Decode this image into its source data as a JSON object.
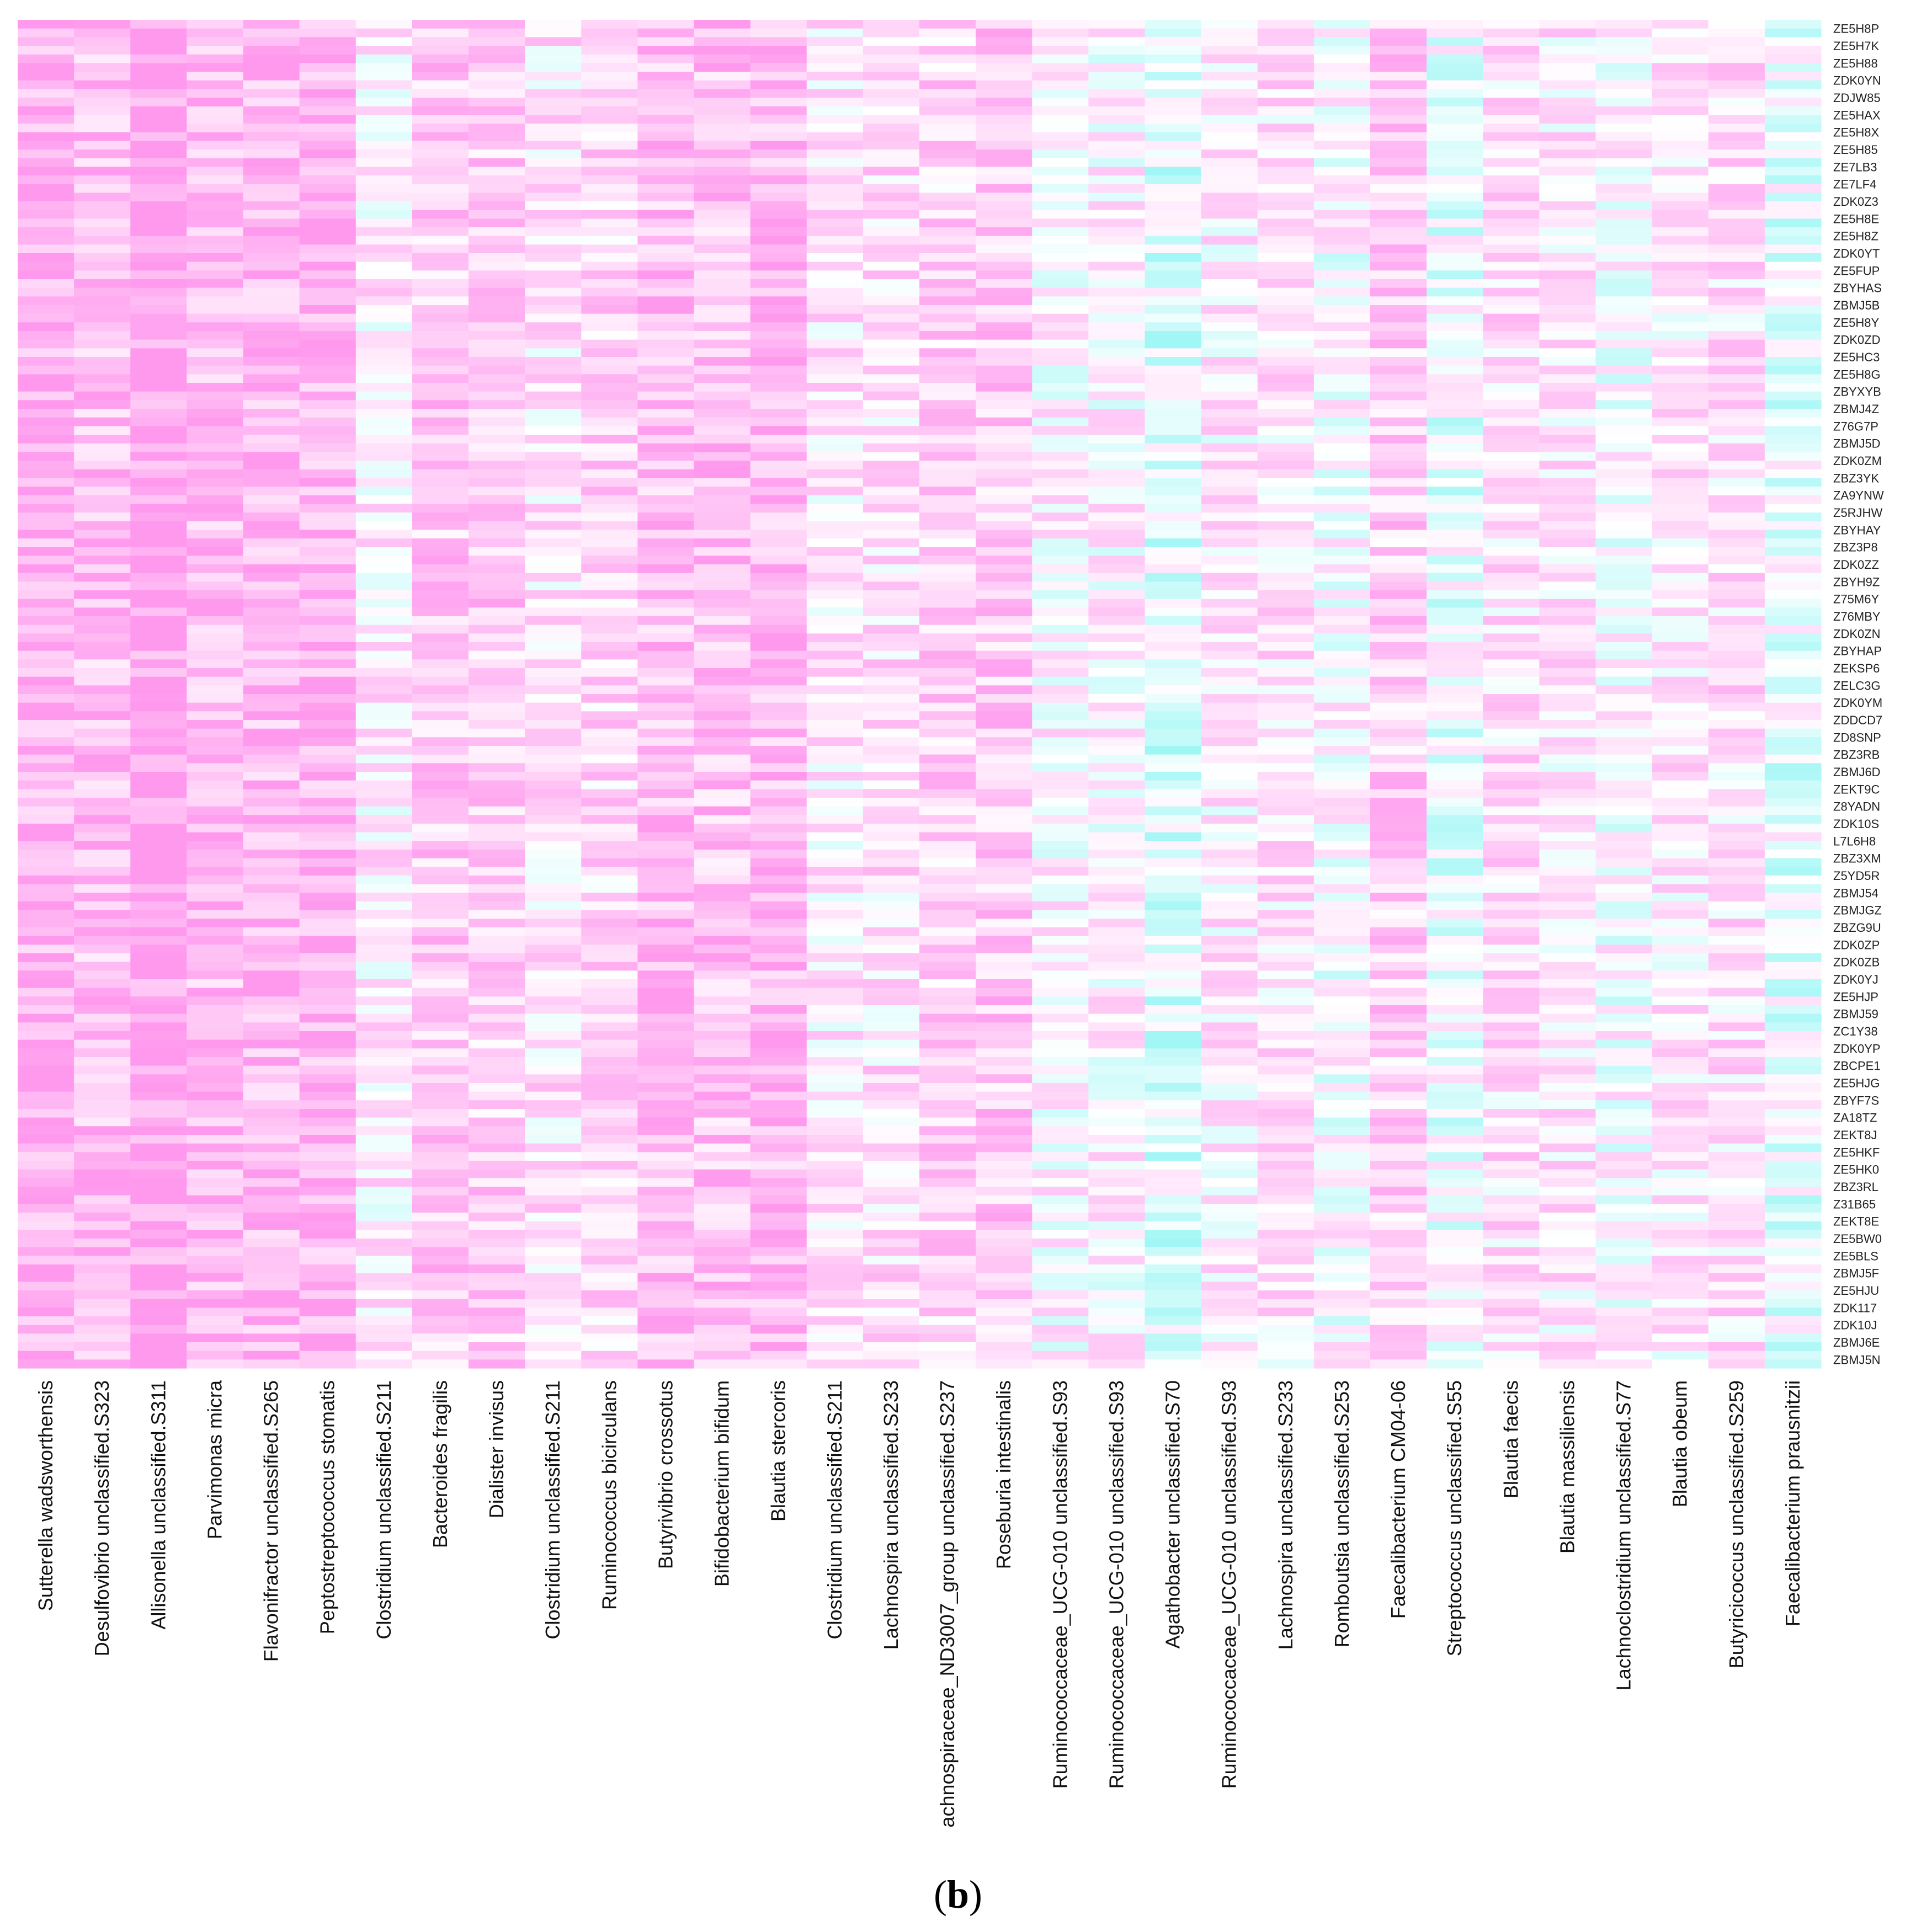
{
  "panel_label": {
    "open": "(",
    "letter": "b",
    "close": ")"
  },
  "chart_data": {
    "type": "heatmap",
    "title": "",
    "xlabel": "",
    "ylabel": "",
    "legend": "none",
    "grid": false,
    "colors": {
      "high": "#ff99ee",
      "low": "#66f2f0",
      "mid": "#ffffff"
    },
    "columns": [
      "Sutterella wadsworthensis",
      "Desulfovibrio unclassified.S323",
      "Allisonella unclassified.S311",
      "Parvimonas micra",
      "Flavonifractor unclassified.S265",
      "Peptostreptococcus stomatis",
      "Clostridium unclassified.S211",
      "Bacteroides fragilis",
      "Dialister invisus",
      "Clostridium unclassified.S211",
      "Ruminococcus bicirculans",
      "Butyrivibrio crossotus",
      "Bifidobacterium bifidum",
      "Blautia stercoris",
      "Clostridium unclassified.S211",
      "Lachnospira unclassified.S233",
      "achnospiraceae_ND3007_group unclassified.S237",
      "Roseburia intestinalis",
      "Ruminococcaceae_UCG-010 unclassified.S93",
      "Ruminococcaceae_UCG-010 unclassified.S93",
      "Agathobacter unclassified.S70",
      "Ruminococcaceae_UCG-010 unclassified.S93",
      "Lachnospira unclassified.S233",
      "Romboutsia unclassified.S253",
      "Faecalibacterium CM04-06",
      "Streptococcus unclassified.S55",
      "Blautia faecis",
      "Blautia massiliensis",
      "Lachnoclostridium unclassified.S77",
      "Blautia obeum",
      "Butyricicoccus unclassified.S259",
      "Faecalibacterium prausnitzii"
    ],
    "column_bias": [
      0.78,
      0.62,
      0.95,
      0.66,
      0.7,
      0.74,
      0.2,
      0.5,
      0.48,
      0.28,
      0.4,
      0.62,
      0.58,
      0.68,
      0.22,
      0.3,
      0.42,
      0.5,
      0.12,
      0.12,
      -0.2,
      0.18,
      0.26,
      0.05,
      0.45,
      -0.08,
      0.3,
      0.22,
      0.05,
      0.2,
      0.3,
      -0.1
    ],
    "rows": [
      "ZE5H8P",
      "ZE5H7K",
      "ZE5H88",
      "ZDK0YN",
      "ZDJW85",
      "ZE5HAX",
      "ZE5H8X",
      "ZE5H85",
      "ZE7LB3",
      "ZE7LF4",
      "ZDK0Z3",
      "ZE5H8E",
      "ZE5H8Z",
      "ZDK0YT",
      "ZE5FUP",
      "ZBYHAS",
      "ZBMJ5B",
      "ZE5H8Y",
      "ZDK0ZD",
      "ZE5HC3",
      "ZE5H8G",
      "ZBYXYB",
      "ZBMJ4Z",
      "Z76G7P",
      "ZBMJ5D",
      "ZDK0ZM",
      "ZBZ3YK",
      "ZA9YNW",
      "Z5RJHW",
      "ZBYHAY",
      "ZBZ3P8",
      "ZDK0ZZ",
      "ZBYH9Z",
      "Z75M6Y",
      "Z76MBY",
      "ZDK0ZN",
      "ZBYHAP",
      "ZEKSP6",
      "ZELC3G",
      "ZDK0YM",
      "ZDDCD7",
      "ZD8SNP",
      "ZBZ3RB",
      "ZBMJ6D",
      "ZEKT9C",
      "Z8YADN",
      "ZDK10S",
      "L7L6H8",
      "ZBZ3XM",
      "Z5YD5R",
      "ZBMJ54",
      "ZBMJGZ",
      "ZBZG9U",
      "ZDK0ZP",
      "ZDK0ZB",
      "ZDK0YJ",
      "ZE5HJP",
      "ZBMJ59",
      "ZC1Y38",
      "ZDK0YP",
      "ZBCPE1",
      "ZE5HJG",
      "ZBYF7S",
      "ZA18TZ",
      "ZEKT8J",
      "ZE5HKF",
      "ZE5HK0",
      "ZBZ3RL",
      "Z31B65",
      "ZEKT8E",
      "ZE5BW0",
      "ZE5BLS",
      "ZBMJ5F",
      "ZE5HJU",
      "ZDK117",
      "ZDK10J",
      "ZBMJ6E",
      "ZBMJ5N"
    ],
    "rows_per_label": 2
  }
}
